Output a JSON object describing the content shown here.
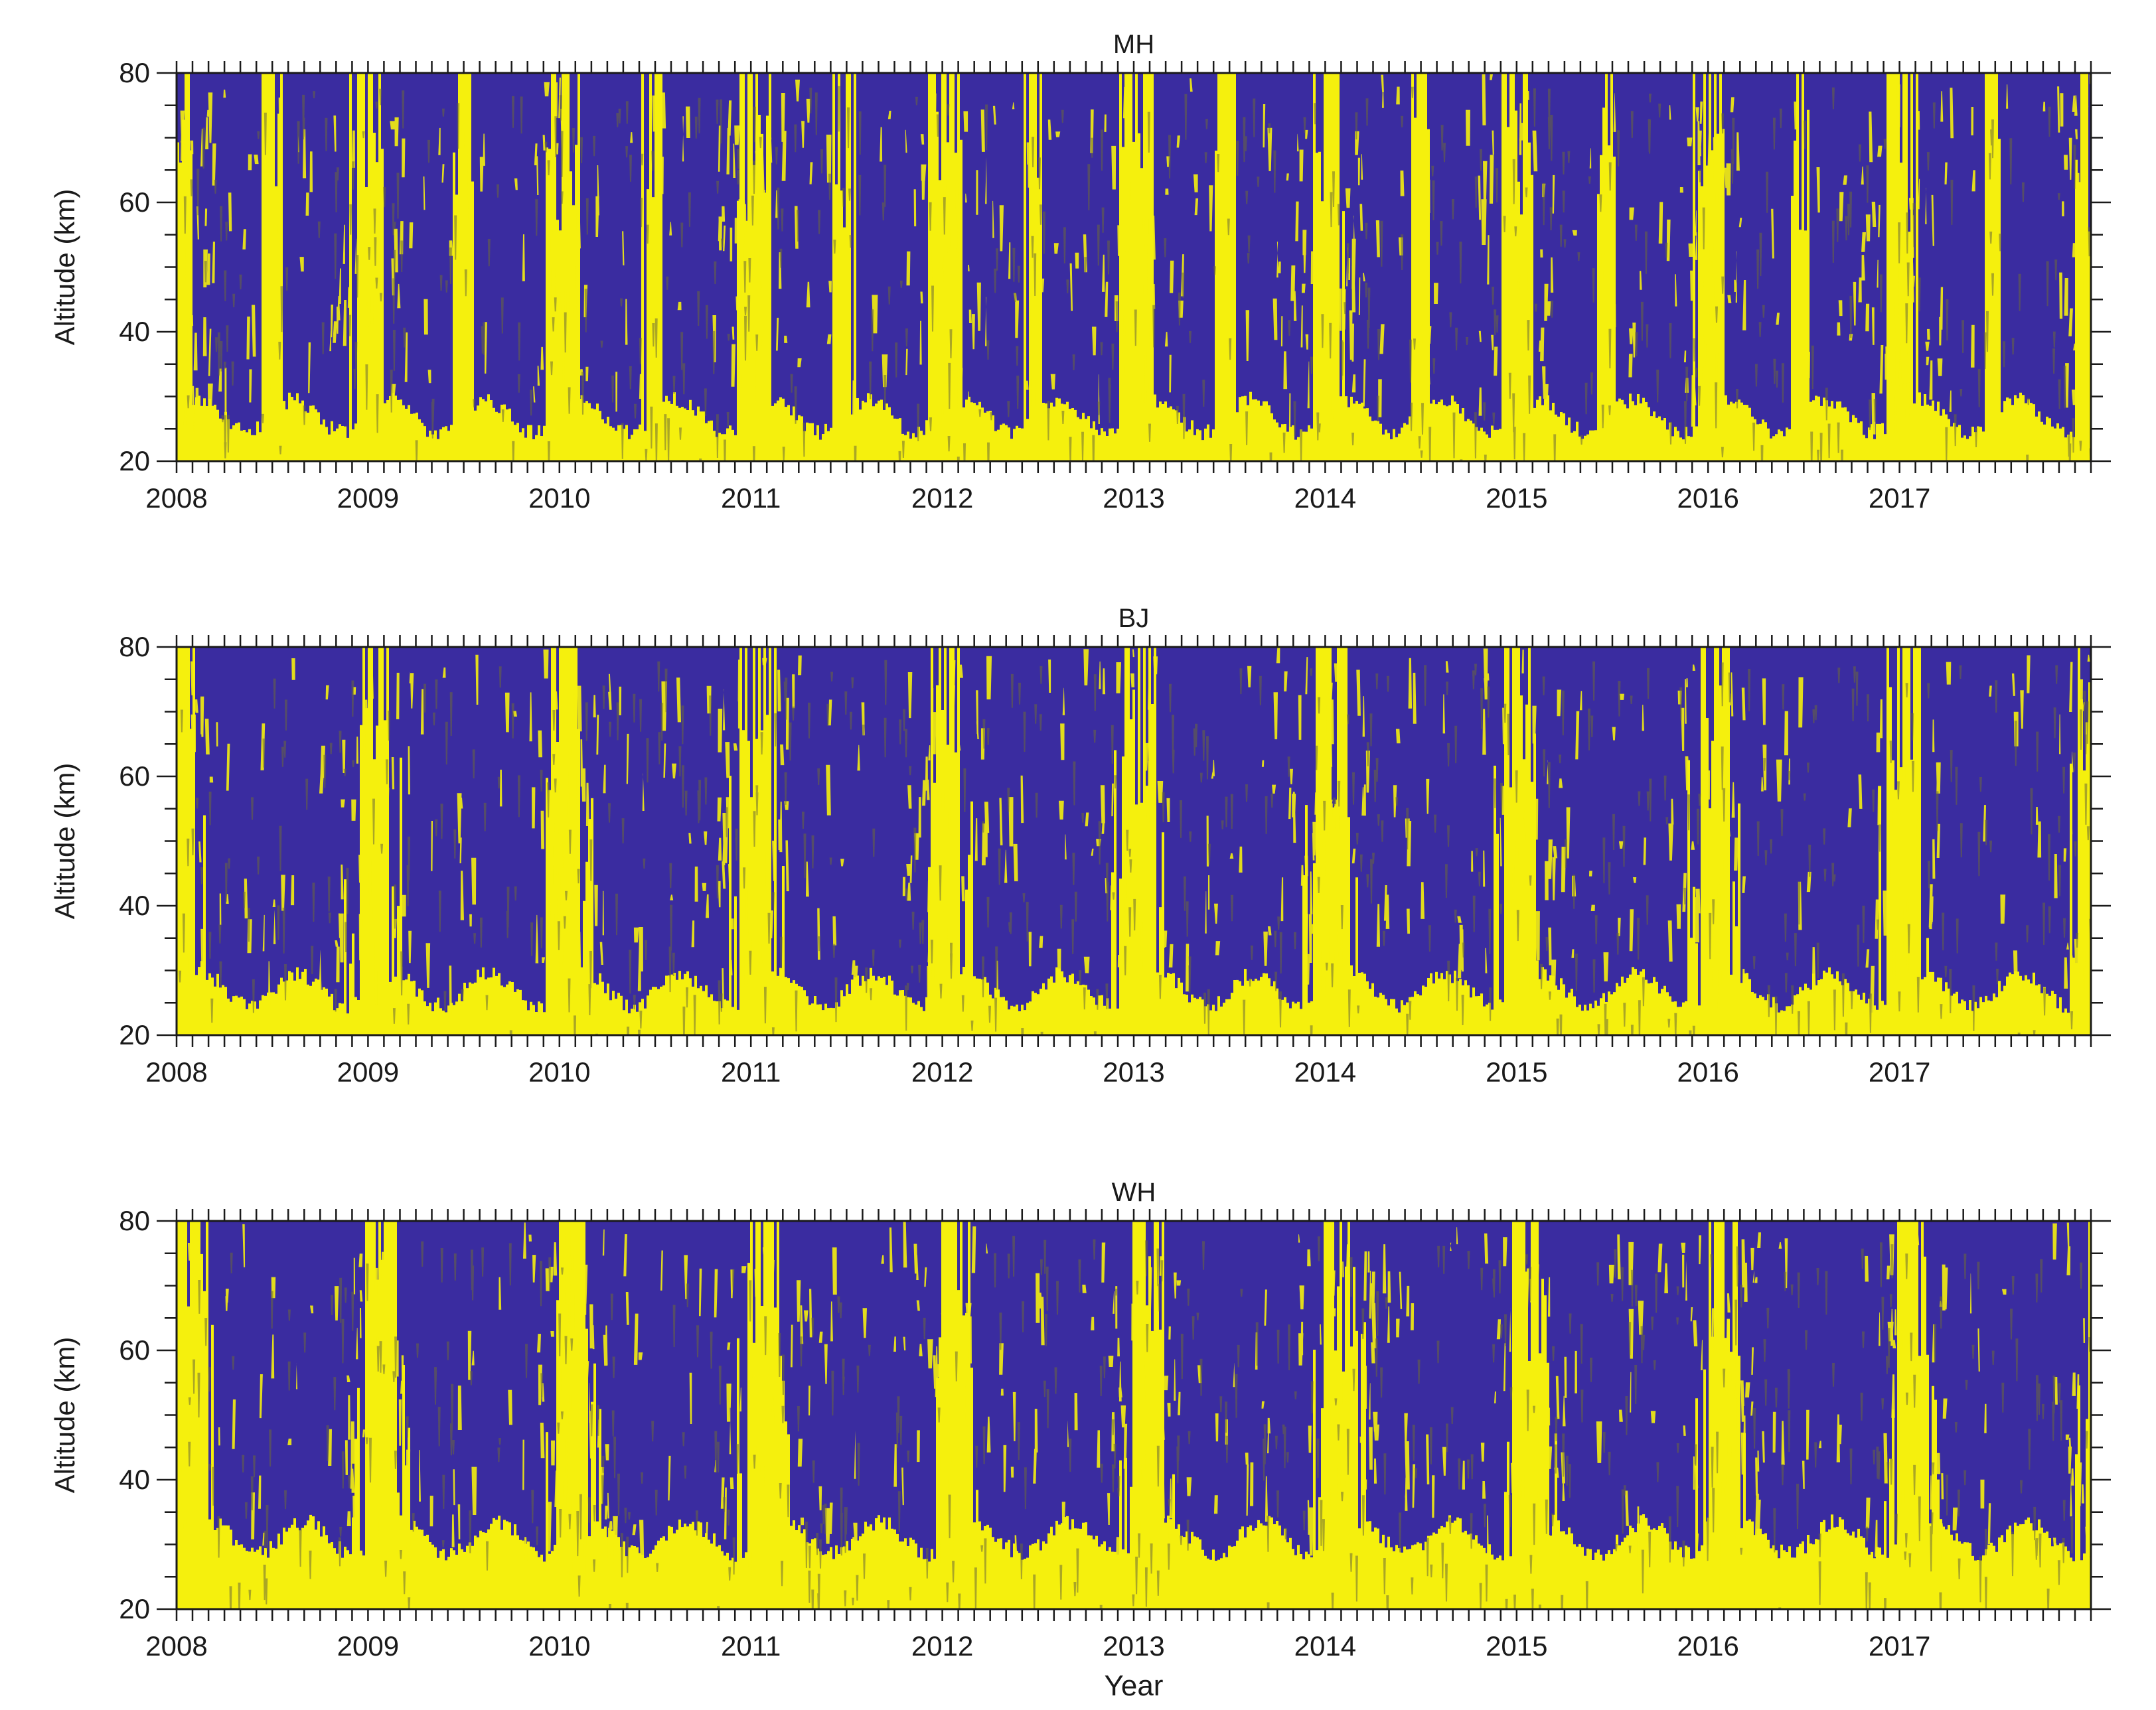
{
  "chart_data": [
    {
      "type": "heatmap",
      "title": "MH",
      "xlabel": "",
      "ylabel": "Altitude (km)",
      "x_ticks": [
        "2008",
        "2009",
        "2010",
        "2011",
        "2012",
        "2013",
        "2014",
        "2015",
        "2016",
        "2017"
      ],
      "y_ticks": [
        "20",
        "40",
        "60",
        "80"
      ],
      "xlim": [
        2008,
        2018
      ],
      "ylim": [
        20,
        80
      ],
      "colors": {
        "high": "#f5f00d",
        "low": "#3a2ca0"
      },
      "grid": false
    },
    {
      "type": "heatmap",
      "title": "BJ",
      "xlabel": "",
      "ylabel": "Altitude (km)",
      "x_ticks": [
        "2008",
        "2009",
        "2010",
        "2011",
        "2012",
        "2013",
        "2014",
        "2015",
        "2016",
        "2017"
      ],
      "y_ticks": [
        "20",
        "40",
        "60",
        "80"
      ],
      "xlim": [
        2008,
        2018
      ],
      "ylim": [
        20,
        80
      ],
      "colors": {
        "high": "#f5f00d",
        "low": "#3a2ca0"
      },
      "grid": false
    },
    {
      "type": "heatmap",
      "title": "WH",
      "xlabel": "Year",
      "ylabel": "Altitude (km)",
      "x_ticks": [
        "2008",
        "2009",
        "2010",
        "2011",
        "2012",
        "2013",
        "2014",
        "2015",
        "2016",
        "2017"
      ],
      "y_ticks": [
        "20",
        "40",
        "60",
        "80"
      ],
      "xlim": [
        2008,
        2018
      ],
      "ylim": [
        20,
        80
      ],
      "colors": {
        "high": "#f5f00d",
        "low": "#3a2ca0"
      },
      "grid": false
    }
  ]
}
